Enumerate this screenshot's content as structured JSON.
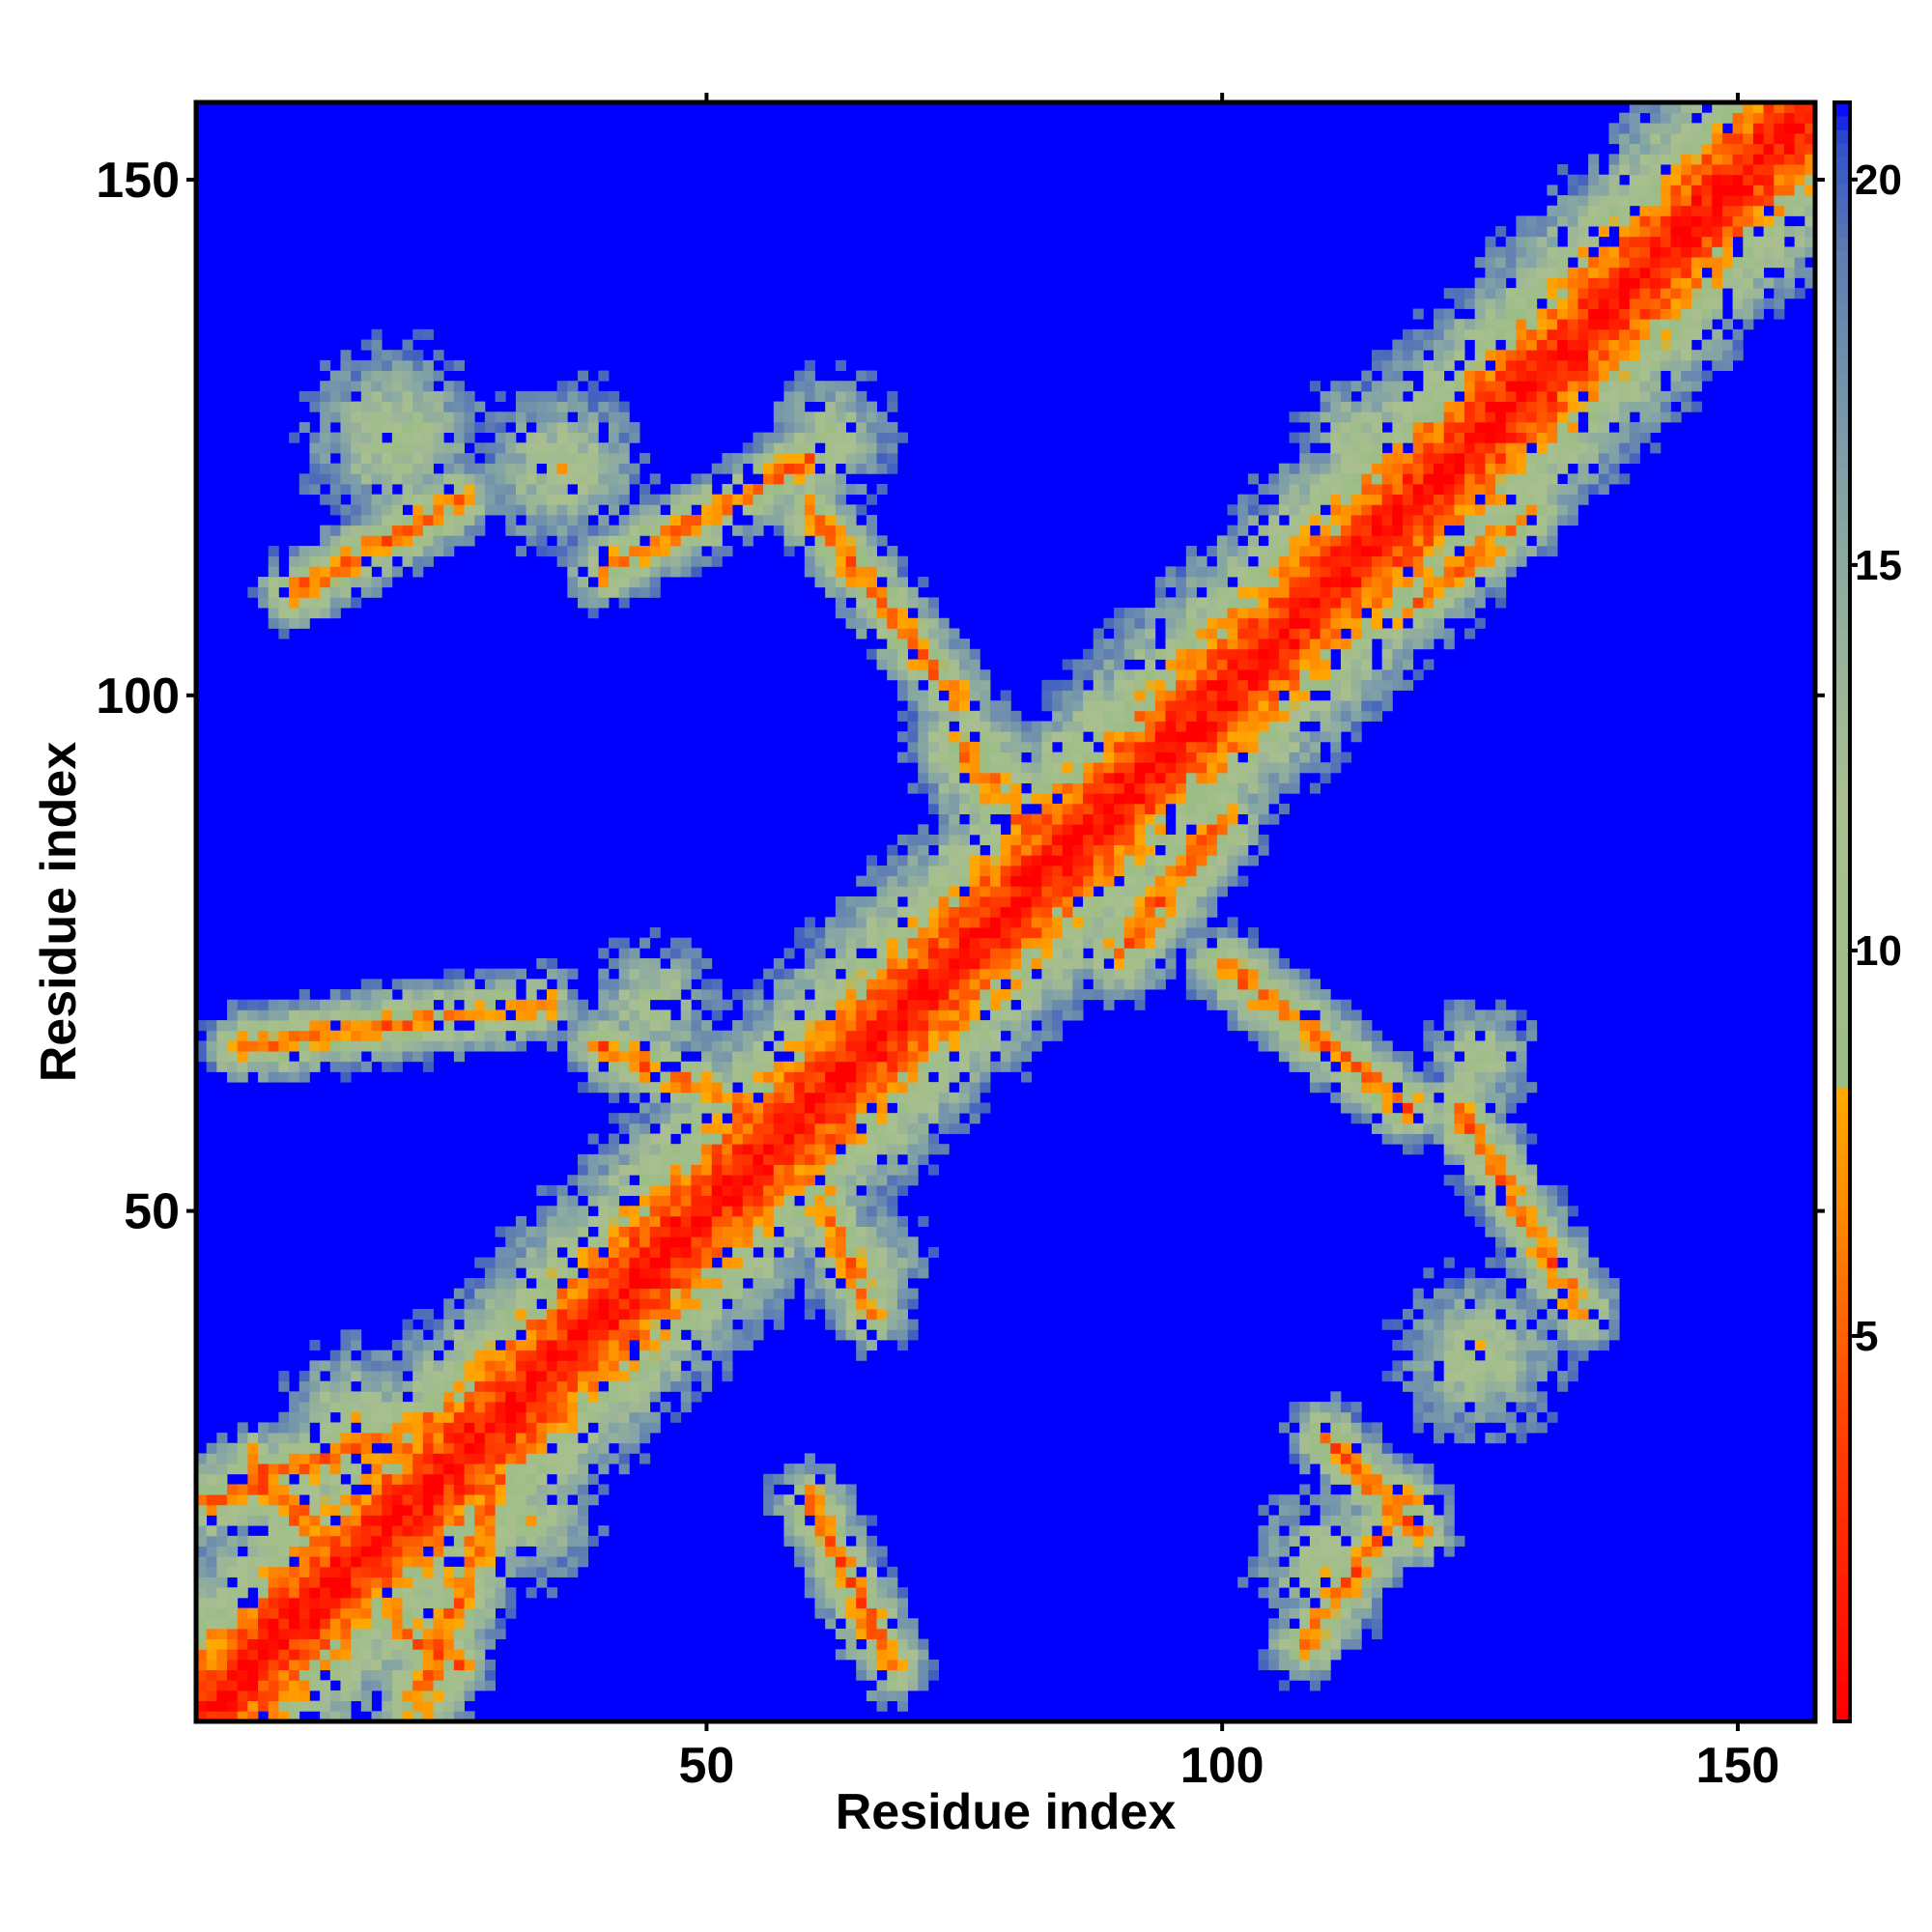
{
  "chart_data": {
    "type": "heatmap",
    "title": "",
    "xlabel": "Residue index",
    "ylabel": "Residue index",
    "xlim": [
      1,
      157
    ],
    "ylim": [
      1,
      157
    ],
    "x_ticks": [
      50,
      100,
      150
    ],
    "y_ticks": [
      50,
      100,
      150
    ],
    "colorbar": {
      "ticks": [
        5,
        10,
        15,
        20
      ],
      "range": [
        0,
        21
      ],
      "stops": [
        {
          "value": 0,
          "color": "#ff0000"
        },
        {
          "value": 4,
          "color": "#ff4400"
        },
        {
          "value": 6.5,
          "color": "#ff8800"
        },
        {
          "value": 8.2,
          "color": "#ffaa00"
        },
        {
          "value": 8.3,
          "color": "#9bbd86"
        },
        {
          "value": 12,
          "color": "#a9bf8f"
        },
        {
          "value": 16,
          "color": "#82a3a6"
        },
        {
          "value": 19,
          "color": "#5f7eb2"
        },
        {
          "value": 20.5,
          "color": "#3050c8"
        },
        {
          "value": 21,
          "color": "#0000ff"
        }
      ]
    },
    "background_value": 21,
    "background_color": "#0000ff",
    "cutoff": 20,
    "features": [
      {
        "kind": "diagonal",
        "from": 1,
        "to": 157,
        "width": 5.5
      },
      {
        "kind": "segment",
        "from": [
          22,
          2
        ],
        "to": [
          35,
          38
        ],
        "width": 5
      },
      {
        "kind": "segment",
        "from": [
          2,
          22
        ],
        "to": [
          38,
          35
        ],
        "width": 5
      },
      {
        "kind": "segment",
        "from": [
          6,
          24
        ],
        "to": [
          26,
          6
        ],
        "width": 3.5
      },
      {
        "kind": "segment",
        "from": [
          24,
          6
        ],
        "to": [
          6,
          26
        ],
        "width": 3.5
      },
      {
        "kind": "segment",
        "from": [
          10,
          110
        ],
        "to": [
          26,
          119
        ],
        "width": 4
      },
      {
        "kind": "segment",
        "from": [
          60,
          118
        ],
        "to": [
          74,
          100
        ],
        "width": 4
      },
      {
        "kind": "segment",
        "from": [
          100,
          74
        ],
        "to": [
          118,
          60
        ],
        "width": 4
      },
      {
        "kind": "segment",
        "from": [
          110,
          28
        ],
        "to": [
          119,
          19
        ],
        "width": 4
      },
      {
        "kind": "segment",
        "from": [
          40,
          66
        ],
        "to": [
          58,
          58
        ],
        "width": 4
      },
      {
        "kind": "segment",
        "from": [
          66,
          40
        ],
        "to": [
          58,
          58
        ],
        "width": 4
      },
      {
        "kind": "segment",
        "from": [
          60,
          22
        ],
        "to": [
          68,
          6
        ],
        "width": 4
      },
      {
        "kind": "segment",
        "from": [
          108,
          8
        ],
        "to": [
          118,
          22
        ],
        "width": 4
      },
      {
        "kind": "segment",
        "from": [
          40,
          112
        ],
        "to": [
          60,
          123
        ],
        "width": 4
      },
      {
        "kind": "segment",
        "from": [
          123,
          60
        ],
        "to": [
          135,
          40
        ],
        "width": 4
      },
      {
        "kind": "segment",
        "from": [
          5,
          66
        ],
        "to": [
          34,
          70
        ],
        "width": 4
      },
      {
        "kind": "segment",
        "from": [
          118,
          108
        ],
        "to": [
          130,
          118
        ],
        "width": 4
      },
      {
        "kind": "segment",
        "from": [
          82,
          78
        ],
        "to": [
          98,
          94
        ],
        "width": 7
      },
      {
        "kind": "segment",
        "from": [
          75,
          95
        ],
        "to": [
          85,
          82
        ],
        "width": 6
      },
      {
        "kind": "segment",
        "from": [
          90,
          75
        ],
        "to": [
          100,
          88
        ],
        "width": 5
      },
      {
        "kind": "blob",
        "center": [
          20,
          125
        ],
        "radius": 10
      },
      {
        "kind": "blob",
        "center": [
          36,
          122
        ],
        "radius": 9
      },
      {
        "kind": "blob",
        "center": [
          62,
          125
        ],
        "radius": 7
      },
      {
        "kind": "blob",
        "center": [
          125,
          36
        ],
        "radius": 9
      },
      {
        "kind": "blob",
        "center": [
          110,
          16
        ],
        "radius": 8
      },
      {
        "kind": "blob",
        "center": [
          16,
          30
        ],
        "radius": 8
      },
      {
        "kind": "blob",
        "center": [
          33,
          20
        ],
        "radius": 7
      },
      {
        "kind": "blob",
        "center": [
          65,
          45
        ],
        "radius": 7
      },
      {
        "kind": "blob",
        "center": [
          45,
          70
        ],
        "radius": 7
      },
      {
        "kind": "blob",
        "center": [
          125,
          65
        ],
        "radius": 6
      },
      {
        "kind": "blob",
        "center": [
          113,
          125
        ],
        "radius": 6
      }
    ]
  }
}
